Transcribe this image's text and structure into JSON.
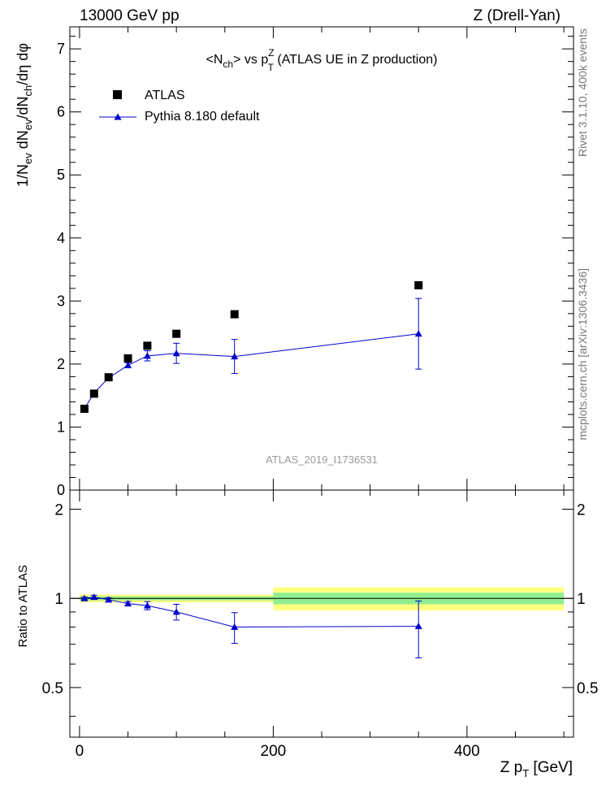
{
  "header": {
    "left": "13000 GeV pp",
    "right": "Z (Drell-Yan)"
  },
  "side_labels": {
    "rivet": "Rivet 3.1.10,  400k events",
    "mcplots": "mcplots.cern.ch [arXiv:1306.3436]"
  },
  "chart_data": [
    {
      "type": "scatter",
      "panel": "main",
      "title": {
        "a": "<N",
        "a_sub": "ch",
        "b": "> vs p",
        "b_sup": "Z",
        "b_sub": "T",
        "c": " (ATLAS UE in Z production)"
      },
      "ylabel": {
        "p1": "1/N",
        "s1": "ev",
        "p2": " dN",
        "s2": "ev",
        "p3": "/dN",
        "s3": "ch",
        "p4": "/dη dφ"
      },
      "watermark": "ATLAS_2019_I1736531",
      "xlim": [
        -10,
        510
      ],
      "ylim": [
        0,
        7.35
      ],
      "yticks": [
        "0",
        "1",
        "2",
        "3",
        "4",
        "5",
        "6",
        "7"
      ],
      "legend_position": "top-left",
      "series": [
        {
          "name": "ATLAS",
          "kind": "data",
          "marker": "square",
          "color": "#000000",
          "x": [
            5,
            15,
            30,
            50,
            70,
            100,
            160,
            350
          ],
          "y": [
            1.29,
            1.53,
            1.79,
            2.09,
            2.29,
            2.48,
            2.79,
            3.25
          ]
        },
        {
          "name": "Pythia 8.180 default",
          "kind": "mc",
          "marker": "triangle",
          "color": "#0000cc",
          "x": [
            5,
            15,
            30,
            50,
            70,
            100,
            160,
            350
          ],
          "y": [
            1.29,
            1.54,
            1.78,
            1.98,
            2.13,
            2.17,
            2.12,
            2.48
          ],
          "yerr": [
            0.02,
            0.03,
            0.03,
            0.04,
            0.08,
            0.16,
            0.27,
            0.56
          ]
        }
      ]
    },
    {
      "type": "scatter",
      "panel": "ratio",
      "ylabel": "Ratio to ATLAS",
      "xlabel": {
        "main": "Z p",
        "sub": "T",
        "unit": " [GeV]"
      },
      "xlim": [
        -10,
        510
      ],
      "ylim": [
        0.34,
        2.32
      ],
      "xticks": [
        0,
        200,
        400
      ],
      "yticks": [
        0.5,
        1,
        2
      ],
      "ytick_labels": [
        "0.5",
        "1",
        "2"
      ],
      "bands": [
        {
          "x0": 0,
          "x1": 200,
          "inner": [
            0.985,
            1.015
          ],
          "outer": [
            0.97,
            1.03
          ]
        },
        {
          "x0": 200,
          "x1": 500,
          "inner": [
            0.955,
            1.045
          ],
          "outer": [
            0.91,
            1.09
          ]
        }
      ],
      "band_colors": {
        "inner": "#90ee90",
        "outer": "#ffff80"
      },
      "series": [
        {
          "name": "Pythia 8.180 default",
          "color": "#0000cc",
          "x": [
            5,
            15,
            30,
            50,
            70,
            100,
            160,
            350
          ],
          "y": [
            1.0,
            1.01,
            0.99,
            0.96,
            0.945,
            0.9,
            0.8,
            0.805
          ],
          "yerr": [
            0.01,
            0.015,
            0.015,
            0.015,
            0.03,
            0.055,
            0.095,
            0.175
          ]
        }
      ]
    }
  ]
}
